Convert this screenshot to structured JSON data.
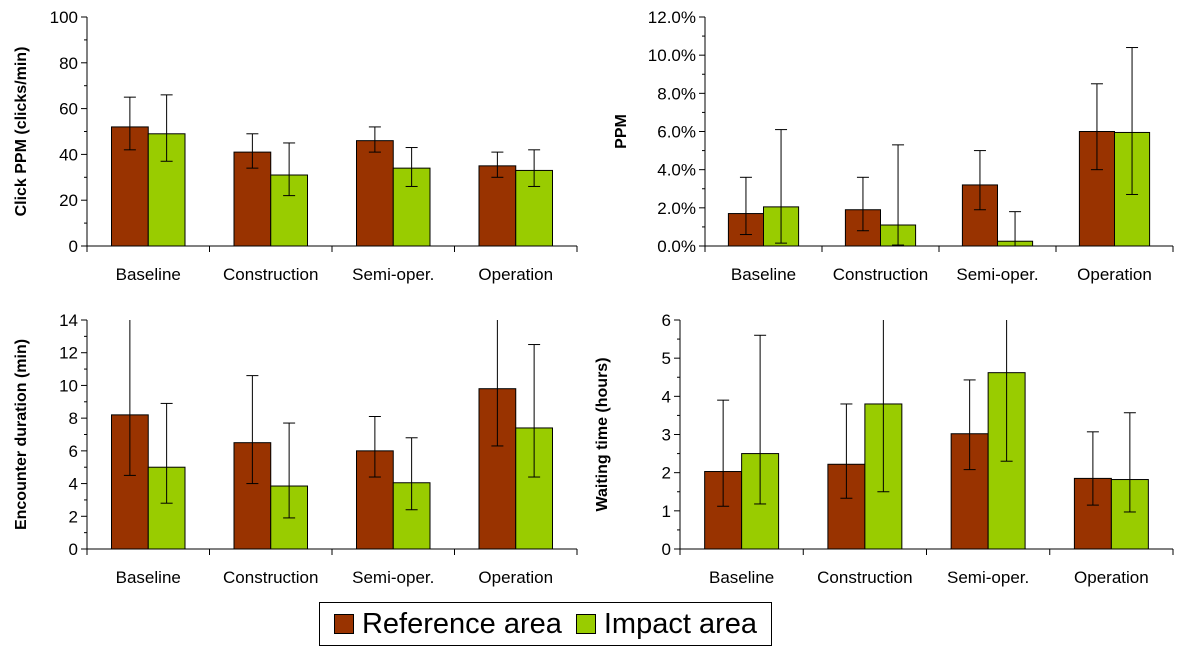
{
  "colors": {
    "reference": "#993300",
    "impact": "#99CC00"
  },
  "legend": [
    {
      "name": "Reference area",
      "color": "#993300"
    },
    {
      "name": "Impact area",
      "color": "#99CC00"
    }
  ],
  "chart_data": [
    {
      "type": "bar",
      "ylabel": "Click PPM (clicks/min)",
      "ylim": [
        0,
        100
      ],
      "yticks": [
        "0",
        "20",
        "40",
        "60",
        "80",
        "100"
      ],
      "categories": [
        "Baseline",
        "Construction",
        "Semi-oper.",
        "Operation"
      ],
      "series": [
        {
          "name": "Reference area",
          "values": [
            52,
            41,
            46,
            35
          ],
          "err_low": [
            42,
            34,
            41,
            30
          ],
          "err_high": [
            65,
            49,
            52,
            41
          ]
        },
        {
          "name": "Impact area",
          "values": [
            49,
            31,
            34,
            33
          ],
          "err_low": [
            37,
            22,
            26,
            26
          ],
          "err_high": [
            66,
            45,
            43,
            42
          ]
        }
      ]
    },
    {
      "type": "bar",
      "ylabel": "PPM",
      "ylim": [
        0,
        12
      ],
      "yticks": [
        "0.0%",
        "2.0%",
        "4.0%",
        "6.0%",
        "8.0%",
        "10.0%",
        "12.0%"
      ],
      "categories": [
        "Baseline",
        "Construction",
        "Semi-oper.",
        "Operation"
      ],
      "series": [
        {
          "name": "Reference area",
          "values": [
            1.7,
            1.9,
            3.2,
            6.0
          ],
          "err_low": [
            0.6,
            0.8,
            1.9,
            4.0
          ],
          "err_high": [
            3.6,
            3.6,
            5.0,
            8.5
          ]
        },
        {
          "name": "Impact area",
          "values": [
            2.05,
            1.1,
            0.25,
            5.95
          ],
          "err_low": [
            0.15,
            0.05,
            0.0,
            2.7
          ],
          "err_high": [
            6.1,
            5.3,
            1.8,
            10.4
          ]
        }
      ]
    },
    {
      "type": "bar",
      "ylabel": "Encounter duration (min)",
      "ylim": [
        0,
        14
      ],
      "yticks": [
        "0",
        "2",
        "4",
        "6",
        "8",
        "10",
        "12",
        "14"
      ],
      "categories": [
        "Baseline",
        "Construction",
        "Semi-oper.",
        "Operation"
      ],
      "series": [
        {
          "name": "Reference area",
          "values": [
            8.2,
            6.5,
            6.0,
            9.8
          ],
          "err_low": [
            4.5,
            4.0,
            4.4,
            6.3
          ],
          "err_high": [
            14,
            10.6,
            8.1,
            14
          ]
        },
        {
          "name": "Impact area",
          "values": [
            5.0,
            3.85,
            4.05,
            7.4
          ],
          "err_low": [
            2.8,
            1.9,
            2.4,
            4.4
          ],
          "err_high": [
            8.9,
            7.7,
            6.8,
            12.5
          ]
        }
      ]
    },
    {
      "type": "bar",
      "ylabel": "Waiting time (hours)",
      "ylim": [
        0,
        6
      ],
      "yticks": [
        "0",
        "1",
        "2",
        "3",
        "4",
        "5",
        "6"
      ],
      "categories": [
        "Baseline",
        "Construction",
        "Semi-oper.",
        "Operation"
      ],
      "series": [
        {
          "name": "Reference area",
          "values": [
            2.03,
            2.22,
            3.02,
            1.85
          ],
          "err_low": [
            1.12,
            1.33,
            2.08,
            1.15
          ],
          "err_high": [
            3.9,
            3.8,
            4.43,
            3.07
          ]
        },
        {
          "name": "Impact area",
          "values": [
            2.5,
            3.8,
            4.62,
            1.82
          ],
          "err_low": [
            1.18,
            1.5,
            2.3,
            0.97
          ],
          "err_high": [
            5.6,
            6,
            6,
            3.57
          ]
        }
      ]
    }
  ]
}
